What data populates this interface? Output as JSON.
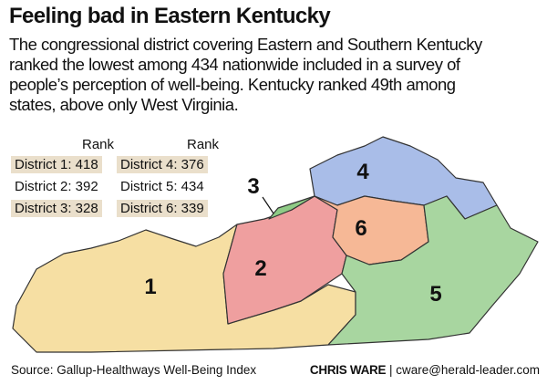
{
  "title": "Feeling bad in Eastern Kentucky",
  "description_lines": [
    "The congressional district covering Eastern and Southern Kentucky",
    "ranked the lowest among 434 nationwide included in a survey of",
    "people’s perception of well-being. Kentucky ranked 49th among",
    "states, above only West Virginia."
  ],
  "rank_table": {
    "headers": [
      "Rank",
      "Rank"
    ],
    "rows": [
      [
        "District 1: 418",
        "District 4: 376"
      ],
      [
        "District 2: 392",
        "District 5: 434"
      ],
      [
        "District 3: 328",
        "District 6: 339"
      ]
    ]
  },
  "map": {
    "district_labels": [
      "1",
      "2",
      "3",
      "4",
      "5",
      "6"
    ]
  },
  "footer": {
    "source": "Source: Gallup-Healthways Well-Being Index",
    "credit_name": "CHRIS WARE",
    "credit_email": "| cware@herald-leader.com"
  }
}
